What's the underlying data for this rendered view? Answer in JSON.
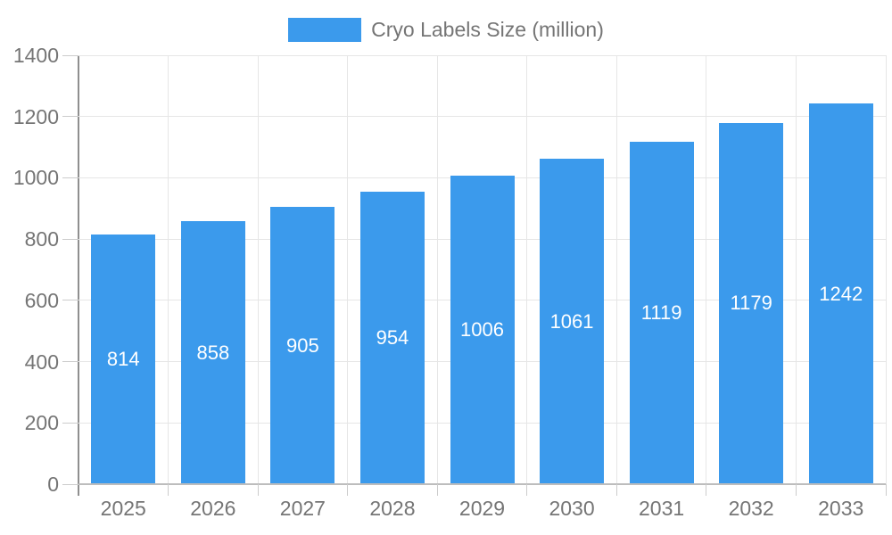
{
  "legend": {
    "label": "Cryo Labels Size (million)"
  },
  "colors": {
    "bar": "#3b9aec",
    "axis_text": "#757575",
    "bar_label_text": "#ffffff",
    "gridline": "#e6e6e6",
    "axis_line": "#8f8f8f"
  },
  "chart_data": {
    "type": "bar",
    "title": "",
    "xlabel": "",
    "ylabel": "",
    "categories": [
      "2025",
      "2026",
      "2027",
      "2028",
      "2029",
      "2030",
      "2031",
      "2032",
      "2033"
    ],
    "series": [
      {
        "name": "Cryo Labels Size (million)",
        "values": [
          814,
          858,
          905,
          954,
          1006,
          1061,
          1119,
          1179,
          1242
        ]
      }
    ],
    "ylim": [
      0,
      1400
    ],
    "ytick_step": 200,
    "ytick_labels": [
      "0",
      "200",
      "400",
      "600",
      "800",
      "1000",
      "1200",
      "1400"
    ],
    "grid": true,
    "legend_position": "top-center",
    "bar_labels_inside": true
  }
}
